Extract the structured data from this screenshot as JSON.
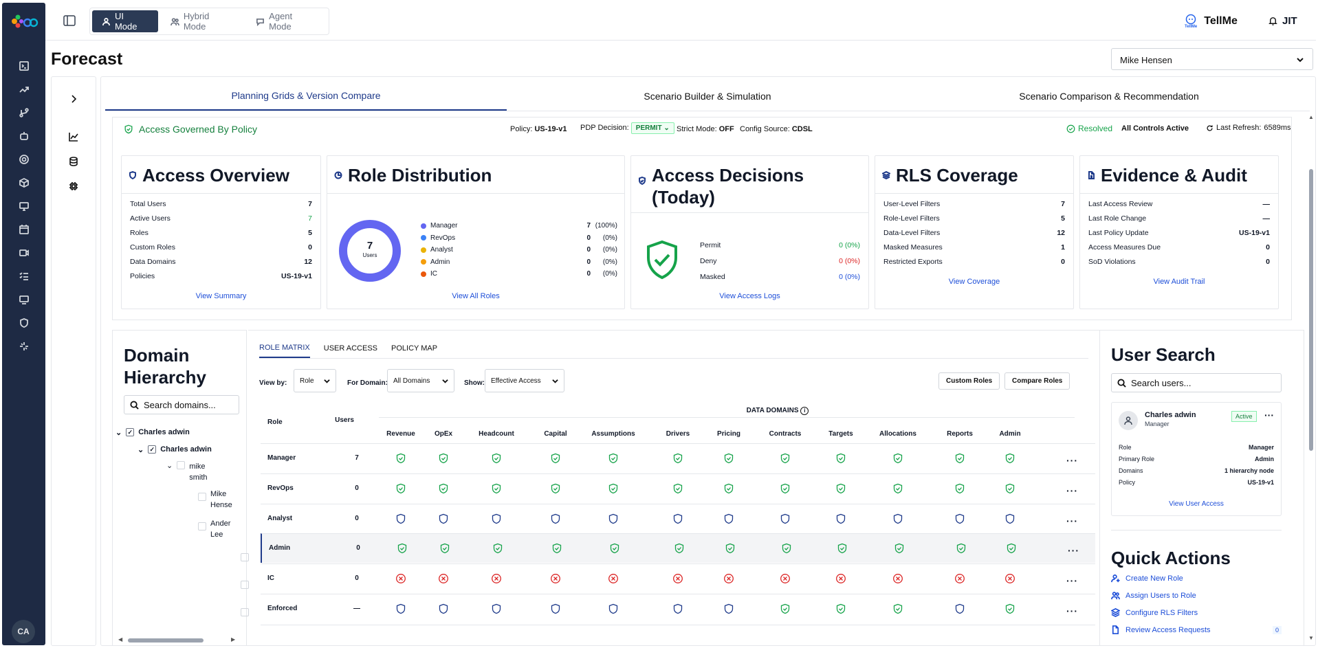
{
  "topbar": {
    "modes": [
      {
        "label": "UI Mode"
      },
      {
        "label": "Hybrid Mode"
      },
      {
        "label": "Agent Mode"
      }
    ],
    "tellme_small": "TellMe",
    "tellme_label": "TellMe",
    "jit_label": "JIT"
  },
  "sidebar": {
    "avatar_initials": "CA"
  },
  "page": {
    "title": "Forecast",
    "user_select": "Mike Hensen"
  },
  "tabs": [
    "Planning Grids & Version Compare",
    "Scenario Builder & Simulation",
    "Scenario Comparison & Recommendation"
  ],
  "policy": {
    "title": "Access Governed By Policy",
    "policy_label": "Policy:",
    "policy_value": "US-19-v1",
    "pdp_label": "PDP Decision:",
    "pdp_value": "PERMIT",
    "strict_label": "Strict Mode:",
    "strict_value": "OFF",
    "config_label": "Config Source:",
    "config_value": "CDSL",
    "resolved": "Resolved",
    "controls": "All Controls Active",
    "refresh_label": "Last Refresh:",
    "refresh_value": "6589ms"
  },
  "cards": {
    "access_overview": {
      "title": "Access Overview",
      "rows": [
        {
          "k": "Total Users",
          "v": "7"
        },
        {
          "k": "Active Users",
          "v": "7"
        },
        {
          "k": "Roles",
          "v": "5"
        },
        {
          "k": "Custom Roles",
          "v": "0"
        },
        {
          "k": "Data Domains",
          "v": "12"
        },
        {
          "k": "Policies",
          "v": "US-19-v1"
        }
      ],
      "link": "View Summary"
    },
    "role_distribution": {
      "title": "Role Distribution",
      "center_value": "7",
      "center_label": "Users",
      "items": [
        {
          "name": "Manager",
          "count": "7",
          "pct": "(100%)",
          "color": "#6366f1"
        },
        {
          "name": "RevOps",
          "count": "0",
          "pct": "(0%)",
          "color": "#3b82f6"
        },
        {
          "name": "Analyst",
          "count": "0",
          "pct": "(0%)",
          "color": "#eab308"
        },
        {
          "name": "Admin",
          "count": "0",
          "pct": "(0%)",
          "color": "#f59e0b"
        },
        {
          "name": "IC",
          "count": "0",
          "pct": "(0%)",
          "color": "#ea580c"
        }
      ],
      "link": "View All Roles"
    },
    "access_decisions": {
      "title": "Access Decisions (Today)",
      "rows": [
        {
          "k": "Permit",
          "v": "0 (0%)",
          "color": "#16a34a"
        },
        {
          "k": "Deny",
          "v": "0 (0%)",
          "color": "#dc2626"
        },
        {
          "k": "Masked",
          "v": "0 (0%)",
          "color": "#1d4ed8"
        }
      ],
      "link": "View Access Logs"
    },
    "rls_coverage": {
      "title": "RLS Coverage",
      "rows": [
        {
          "k": "User-Level Filters",
          "v": "7"
        },
        {
          "k": "Role-Level Filters",
          "v": "5"
        },
        {
          "k": "Data-Level Filters",
          "v": "12"
        },
        {
          "k": "Masked Measures",
          "v": "1"
        },
        {
          "k": "Restricted Exports",
          "v": "0"
        }
      ],
      "link": "View Coverage"
    },
    "evidence_audit": {
      "title": "Evidence & Audit",
      "rows": [
        {
          "k": "Last Access Review",
          "v": "—"
        },
        {
          "k": "Last Role Change",
          "v": "—"
        },
        {
          "k": "Last Policy Update",
          "v": "US-19-v1"
        },
        {
          "k": "Access Measures Due",
          "v": "0"
        },
        {
          "k": "SoD Violations",
          "v": "0"
        }
      ],
      "link": "View Audit Trail"
    }
  },
  "domain": {
    "title": "Domain Hierarchy",
    "search_placeholder": "Search domains...",
    "nodes": [
      {
        "label": "Charles adwin"
      },
      {
        "label": "Charles adwin"
      },
      {
        "label": "mike smith"
      },
      {
        "label": "Mike Hense"
      },
      {
        "label": "Ander Lee"
      }
    ]
  },
  "matrix": {
    "tabs": [
      "ROLE MATRIX",
      "USER ACCESS",
      "POLICY MAP"
    ],
    "view_by_label": "View by:",
    "view_by_value": "Role",
    "for_domain_label": "For Domain:",
    "for_domain_value": "All Domains",
    "show_label": "Show:",
    "show_value": "Effective Access",
    "custom_roles_btn": "Custom Roles",
    "compare_roles_btn": "Compare Roles",
    "role_header": "Role",
    "users_header": "Users",
    "data_domains_header": "DATA DOMAINS",
    "domains": [
      "Revenue",
      "OpEx",
      "Headcount",
      "Capital",
      "Assumptions",
      "Drivers",
      "Pricing",
      "Contracts",
      "Targets",
      "Allocations",
      "Reports",
      "Admin"
    ],
    "rows": [
      {
        "role": "Manager",
        "users": "7",
        "cells": [
          "g",
          "g",
          "g",
          "g",
          "g",
          "g",
          "g",
          "g",
          "g",
          "g",
          "g",
          "g"
        ]
      },
      {
        "role": "RevOps",
        "users": "0",
        "cells": [
          "g",
          "g",
          "g",
          "g",
          "g",
          "g",
          "g",
          "g",
          "g",
          "g",
          "g",
          "g"
        ]
      },
      {
        "role": "Analyst",
        "users": "0",
        "cells": [
          "b",
          "b",
          "b",
          "b",
          "b",
          "b",
          "b",
          "b",
          "b",
          "b",
          "b",
          "b"
        ]
      },
      {
        "role": "Admin",
        "users": "0",
        "cells": [
          "g",
          "g",
          "g",
          "g",
          "g",
          "g",
          "g",
          "g",
          "g",
          "g",
          "g",
          "g"
        ]
      },
      {
        "role": "IC",
        "users": "0",
        "cells": [
          "r",
          "r",
          "r",
          "r",
          "r",
          "r",
          "r",
          "r",
          "r",
          "r",
          "r",
          "r"
        ]
      },
      {
        "role": "Enforced",
        "users": "—",
        "cells": [
          "b",
          "b",
          "b",
          "b",
          "b",
          "b",
          "b",
          "g",
          "g",
          "g",
          "b",
          "g"
        ]
      }
    ],
    "selected_row": 3
  },
  "user_search": {
    "title": "User Search",
    "placeholder": "Search users...",
    "name": "Charles adwin",
    "subtitle": "Manager",
    "status": "Active",
    "rows": [
      {
        "k": "Role",
        "v": "Manager"
      },
      {
        "k": "Primary Role",
        "v": "Admin"
      },
      {
        "k": "Domains",
        "v": "1 hierarchy node"
      },
      {
        "k": "Policy",
        "v": "US-19-v1"
      }
    ],
    "link": "View User Access"
  },
  "quick_actions": {
    "title": "Quick Actions",
    "items": [
      {
        "label": "Create New Role",
        "icon": "user-plus-icon"
      },
      {
        "label": "Assign Users to Role",
        "icon": "users-icon"
      },
      {
        "label": "Configure RLS Filters",
        "icon": "layers-icon"
      },
      {
        "label": "Review Access Requests",
        "icon": "document-icon",
        "badge": "0"
      }
    ]
  }
}
